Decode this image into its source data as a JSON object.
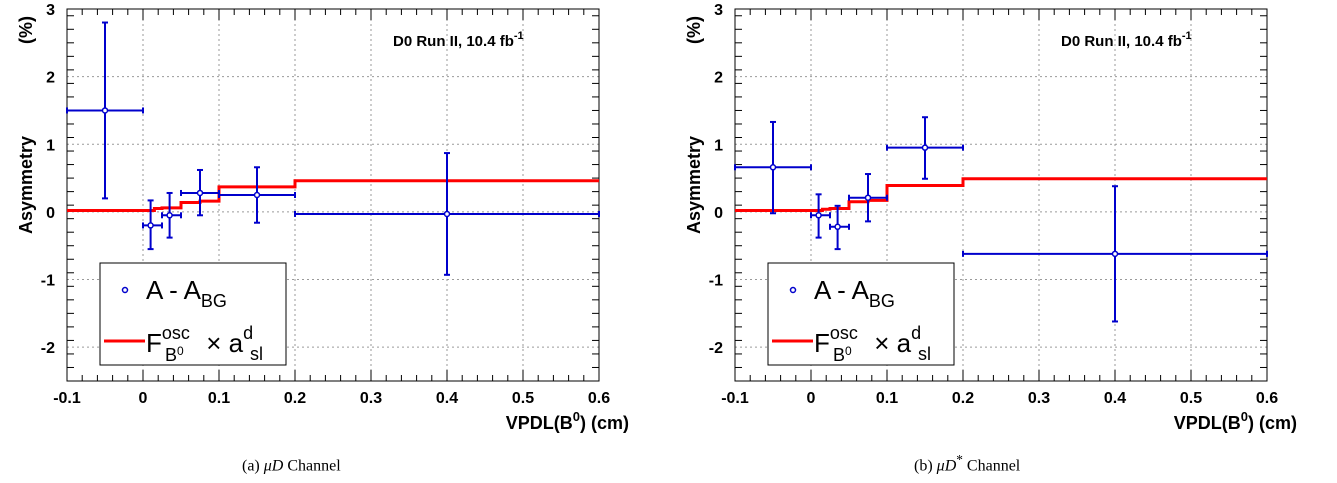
{
  "figure": {
    "captions": [
      {
        "prefix": "(a) ",
        "mu": "μD",
        "sup": "",
        "suffix": " Channel"
      },
      {
        "prefix": "(b) ",
        "mu": "μD",
        "sup": "*",
        "suffix": " Channel"
      }
    ]
  },
  "colors": {
    "data": "#0000cc",
    "fit": "#ff0000",
    "grid": "#9a9a9a",
    "axis": "#000000"
  },
  "chart_data": [
    {
      "type": "scatter",
      "title": "",
      "xlabel": "VPDL(B0)  (cm)",
      "xlabel_parts": {
        "main": "VPDL(B",
        "sup": "0",
        "end": ")  (cm)"
      },
      "ylabel": "Asymmetry     (%)",
      "ylabel_parts": {
        "main": "Asymmetry",
        "unit": "(%)"
      },
      "experiment_label": {
        "main": "D0 Run II, 10.4 fb",
        "sup": "-1"
      },
      "xlim": [
        -0.1,
        0.6
      ],
      "ylim": [
        -2.5,
        3
      ],
      "x_ticks": [
        "-0.1",
        "0",
        "0.1",
        "0.2",
        "0.3",
        "0.4",
        "0.5",
        "0.6"
      ],
      "y_ticks": [
        "-2",
        "-1",
        "0",
        "1",
        "2",
        "3"
      ],
      "grid": true,
      "legend_position": "bottom-left",
      "legend": [
        {
          "marker": "circle",
          "main": "A - A",
          "sub": "BG"
        },
        {
          "marker": "line",
          "F": "F",
          "F_sup": "osc",
          "F_sub": "B",
          "F_sub_sup": "0",
          "times": " × a",
          "a_sup": "d",
          "a_sub": "sl"
        }
      ],
      "series": [
        {
          "kind": "points",
          "points": [
            {
              "x": -0.05,
              "y": 1.5,
              "xlo": -0.1,
              "xhi": 0.0,
              "ylo": 0.2,
              "yhi": 2.8
            },
            {
              "x": 0.01,
              "y": -0.2,
              "xlo": 0.0,
              "xhi": 0.025,
              "ylo": -0.55,
              "yhi": 0.17
            },
            {
              "x": 0.035,
              "y": -0.05,
              "xlo": 0.025,
              "xhi": 0.05,
              "ylo": -0.38,
              "yhi": 0.28
            },
            {
              "x": 0.075,
              "y": 0.28,
              "xlo": 0.05,
              "xhi": 0.1,
              "ylo": -0.05,
              "yhi": 0.62
            },
            {
              "x": 0.15,
              "y": 0.25,
              "xlo": 0.1,
              "xhi": 0.2,
              "ylo": -0.16,
              "yhi": 0.66
            },
            {
              "x": 0.4,
              "y": -0.03,
              "xlo": 0.2,
              "xhi": 0.6,
              "ylo": -0.93,
              "yhi": 0.87
            }
          ]
        },
        {
          "kind": "step",
          "steps": [
            {
              "x0": -0.1,
              "x1": 0.015,
              "y": 0.02
            },
            {
              "x0": 0.015,
              "x1": 0.025,
              "y": 0.05
            },
            {
              "x0": 0.025,
              "x1": 0.05,
              "y": 0.06
            },
            {
              "x0": 0.05,
              "x1": 0.075,
              "y": 0.14
            },
            {
              "x0": 0.075,
              "x1": 0.1,
              "y": 0.16
            },
            {
              "x0": 0.1,
              "x1": 0.2,
              "y": 0.37
            },
            {
              "x0": 0.2,
              "x1": 0.6,
              "y": 0.46
            }
          ]
        }
      ]
    },
    {
      "type": "scatter",
      "title": "",
      "xlabel": "VPDL(B0)  (cm)",
      "xlabel_parts": {
        "main": "VPDL(B",
        "sup": "0",
        "end": ")  (cm)"
      },
      "ylabel": "Asymmetry     (%)",
      "ylabel_parts": {
        "main": "Asymmetry",
        "unit": "(%)"
      },
      "experiment_label": {
        "main": "D0 Run II, 10.4 fb",
        "sup": "-1"
      },
      "xlim": [
        -0.1,
        0.6
      ],
      "ylim": [
        -2.5,
        3
      ],
      "x_ticks": [
        "-0.1",
        "0",
        "0.1",
        "0.2",
        "0.3",
        "0.4",
        "0.5",
        "0.6"
      ],
      "y_ticks": [
        "-2",
        "-1",
        "0",
        "1",
        "2",
        "3"
      ],
      "grid": true,
      "legend_position": "bottom-left",
      "legend": [
        {
          "marker": "circle",
          "main": "A - A",
          "sub": "BG"
        },
        {
          "marker": "line",
          "F": "F",
          "F_sup": "osc",
          "F_sub": "B",
          "F_sub_sup": "0",
          "times": " × a",
          "a_sup": "d",
          "a_sub": "sl"
        }
      ],
      "series": [
        {
          "kind": "points",
          "points": [
            {
              "x": -0.05,
              "y": 0.66,
              "xlo": -0.1,
              "xhi": 0.0,
              "ylo": -0.02,
              "yhi": 1.33
            },
            {
              "x": 0.01,
              "y": -0.05,
              "xlo": 0.0,
              "xhi": 0.025,
              "ylo": -0.38,
              "yhi": 0.26
            },
            {
              "x": 0.035,
              "y": -0.22,
              "xlo": 0.025,
              "xhi": 0.05,
              "ylo": -0.55,
              "yhi": 0.09
            },
            {
              "x": 0.075,
              "y": 0.21,
              "xlo": 0.05,
              "xhi": 0.1,
              "ylo": -0.14,
              "yhi": 0.56
            },
            {
              "x": 0.15,
              "y": 0.95,
              "xlo": 0.1,
              "xhi": 0.2,
              "ylo": 0.49,
              "yhi": 1.4
            },
            {
              "x": 0.4,
              "y": -0.62,
              "xlo": 0.2,
              "xhi": 0.6,
              "ylo": -1.62,
              "yhi": 0.38
            }
          ]
        },
        {
          "kind": "step",
          "steps": [
            {
              "x0": -0.1,
              "x1": 0.015,
              "y": 0.02
            },
            {
              "x0": 0.015,
              "x1": 0.025,
              "y": 0.04
            },
            {
              "x0": 0.025,
              "x1": 0.05,
              "y": 0.05
            },
            {
              "x0": 0.05,
              "x1": 0.075,
              "y": 0.15
            },
            {
              "x0": 0.075,
              "x1": 0.1,
              "y": 0.17
            },
            {
              "x0": 0.1,
              "x1": 0.2,
              "y": 0.39
            },
            {
              "x0": 0.2,
              "x1": 0.6,
              "y": 0.49
            }
          ]
        }
      ]
    }
  ]
}
